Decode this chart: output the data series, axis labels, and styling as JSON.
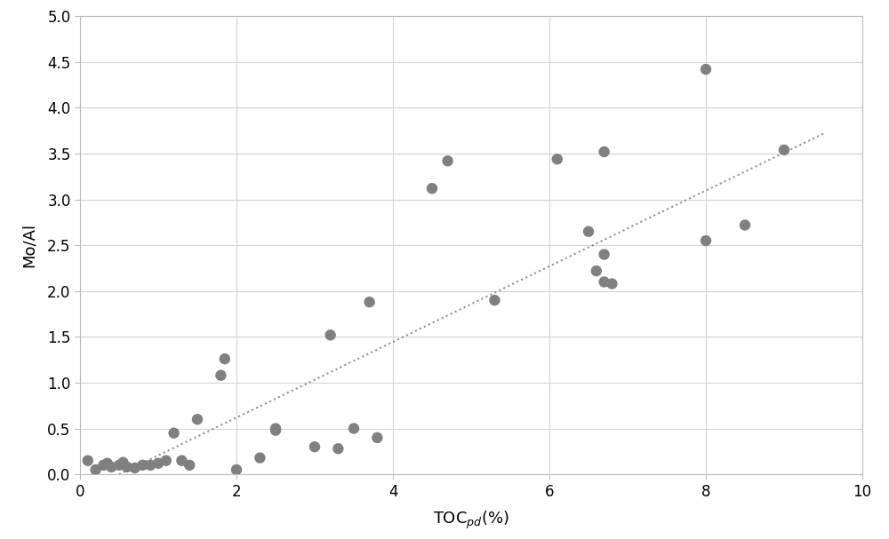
{
  "x": [
    0.1,
    0.2,
    0.3,
    0.35,
    0.4,
    0.5,
    0.55,
    0.6,
    0.7,
    0.8,
    0.9,
    1.0,
    1.1,
    1.2,
    1.3,
    1.4,
    1.5,
    1.8,
    1.85,
    2.0,
    2.3,
    2.5,
    2.5,
    3.0,
    3.2,
    3.3,
    3.5,
    3.7,
    3.8,
    4.5,
    4.7,
    5.3,
    6.1,
    6.5,
    6.6,
    6.7,
    6.7,
    6.7,
    6.8,
    8.0,
    8.0,
    8.5,
    9.0
  ],
  "y": [
    0.15,
    0.05,
    0.1,
    0.12,
    0.08,
    0.1,
    0.13,
    0.08,
    0.07,
    0.1,
    0.1,
    0.12,
    0.15,
    0.45,
    0.15,
    0.1,
    0.6,
    1.08,
    1.26,
    0.05,
    0.18,
    0.48,
    0.5,
    0.3,
    1.52,
    0.28,
    0.5,
    1.88,
    0.4,
    3.12,
    3.42,
    1.9,
    3.44,
    2.65,
    2.22,
    2.4,
    3.52,
    2.1,
    2.08,
    4.42,
    2.55,
    2.72,
    3.54
  ],
  "dot_color": "#808080",
  "dot_size": 80,
  "trendline_color": "#909090",
  "trendline_style": "dotted",
  "trendline_x_start": 0.5,
  "trendline_x_end": 9.5,
  "trendline_slope": 0.4375,
  "trendline_intercept": -0.44,
  "xlabel": "TOC$_{pd}$(%)",
  "ylabel": "Mo/Al",
  "xlim": [
    0,
    10
  ],
  "ylim": [
    0,
    5
  ],
  "xticks": [
    0,
    2,
    4,
    6,
    8,
    10
  ],
  "yticks": [
    0,
    0.5,
    1,
    1.5,
    2,
    2.5,
    3,
    3.5,
    4,
    4.5,
    5
  ],
  "grid_color": "#d3d3d3",
  "background_color": "#ffffff",
  "xlabel_fontsize": 13,
  "ylabel_fontsize": 13,
  "tick_fontsize": 12
}
